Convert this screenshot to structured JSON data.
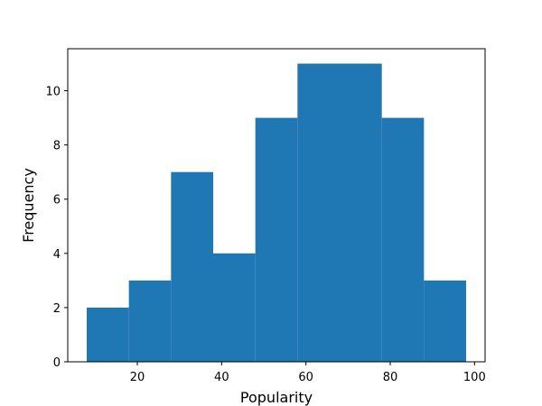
{
  "chart_data": {
    "type": "bar",
    "subtype": "histogram",
    "title": "",
    "xlabel": "Popularity",
    "ylabel": "Frequency",
    "bin_edges": [
      8,
      18,
      28,
      38,
      48,
      58,
      68,
      78,
      88,
      98
    ],
    "values": [
      2,
      3,
      7,
      4,
      9,
      11,
      11,
      9,
      3
    ],
    "xlim": [
      3.5,
      102.5
    ],
    "ylim": [
      0,
      11.55
    ],
    "x_ticks": [
      20,
      40,
      60,
      80,
      100
    ],
    "y_ticks": [
      0,
      2,
      4,
      6,
      8,
      10
    ],
    "grid": false,
    "legend": "none",
    "bar_color": "#1f77b4"
  }
}
